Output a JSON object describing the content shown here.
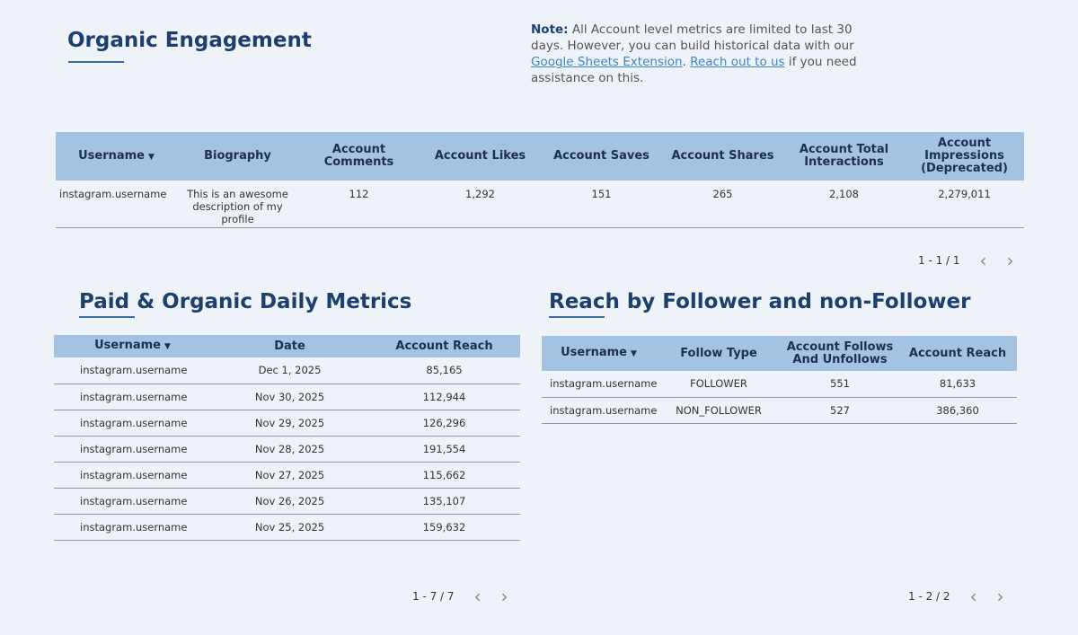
{
  "organic": {
    "title": "Organic Engagement",
    "columns": [
      "Username",
      "Biography",
      "Account Comments",
      "Account Likes",
      "Account Saves",
      "Account Shares",
      "Account Total Interactions",
      "Account Impressions (Deprecated)"
    ],
    "rows": [
      [
        "instagram.username",
        "This is an awesome description of my profile",
        "112",
        "1,292",
        "151",
        "265",
        "2,108",
        "2,279,011"
      ]
    ],
    "pagination": "1 - 1 / 1"
  },
  "note": {
    "label": "Note:",
    "text1": " All Account level metrics are limited to last 30 days. However, you can build historical data with our ",
    "link1": "Google Sheets Extension",
    "text2": ". ",
    "link2": "Reach out to us",
    "text3": " if you need assistance on this."
  },
  "daily": {
    "title": "Paid & Organic Daily Metrics",
    "columns": [
      "Username",
      "Date",
      "Account Reach"
    ],
    "rows": [
      [
        "instagram.username",
        "Dec 1, 2025",
        "85,165"
      ],
      [
        "instagram.username",
        "Nov 30, 2025",
        "112,944"
      ],
      [
        "instagram.username",
        "Nov 29, 2025",
        "126,296"
      ],
      [
        "instagram.username",
        "Nov 28, 2025",
        "191,554"
      ],
      [
        "instagram.username",
        "Nov 27, 2025",
        "115,662"
      ],
      [
        "instagram.username",
        "Nov 26, 2025",
        "135,107"
      ],
      [
        "instagram.username",
        "Nov 25, 2025",
        "159,632"
      ]
    ],
    "pagination": "1 - 7 / 7"
  },
  "reach": {
    "title": "Reach by Follower and non-Follower",
    "columns": [
      "Username",
      "Follow Type",
      "Account Follows And Unfollows",
      "Account Reach"
    ],
    "rows": [
      [
        "instagram.username",
        "FOLLOWER",
        "551",
        "81,633"
      ],
      [
        "instagram.username",
        "NON_FOLLOWER",
        "527",
        "386,360"
      ]
    ],
    "pagination": "1 - 2 / 2"
  },
  "icons": {
    "prev": "chevron-left-icon",
    "next": "chevron-right-icon",
    "sort": "sort-down-icon"
  }
}
